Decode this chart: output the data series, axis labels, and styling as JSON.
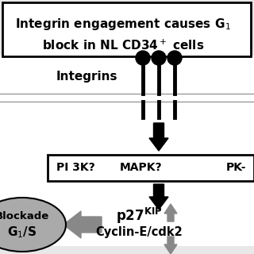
{
  "bg_color": "#e8e8e8",
  "white": "#ffffff",
  "black": "#000000",
  "dark_gray": "#888888",
  "mid_gray": "#aaaaaa",
  "title_line1": "Integrin engagement causes G",
  "title_line2": "block in NL CD34",
  "integrin_label": "Integrins",
  "p27_text": "p27",
  "p27_sup": "KIP",
  "cyclin_text": "Cyclin-E/cdk2",
  "ellipse_text1": "G",
  "ellipse_text2": "/S",
  "ellipse_text3": "Blockade",
  "pi3k": "PI 3K?",
  "mapk": "MAPK?",
  "pkc": "PK-"
}
